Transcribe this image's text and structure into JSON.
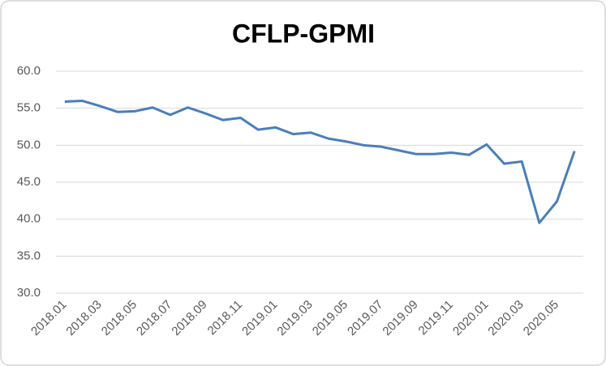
{
  "chart_data": {
    "type": "line",
    "title": "CFLP-GPMI",
    "categories": [
      "2018.01",
      null,
      "2018.03",
      null,
      "2018.05",
      null,
      "2018.07",
      null,
      "2018.09",
      null,
      "2018.11",
      null,
      "2019.01",
      null,
      "2019.03",
      null,
      "2019.05",
      null,
      "2019.07",
      null,
      "2019.09",
      null,
      "2019.11",
      null,
      "2020.01",
      null,
      "2020.03",
      null,
      "2020.05",
      null
    ],
    "series": [
      {
        "color": "#4a7ebb",
        "values": [
          55.9,
          56.0,
          55.3,
          54.5,
          54.6,
          55.1,
          54.1,
          55.1,
          54.3,
          53.4,
          53.7,
          52.1,
          52.4,
          51.5,
          51.7,
          50.9,
          50.5,
          50.0,
          49.8,
          49.3,
          48.8,
          48.8,
          49.0,
          48.7,
          50.1,
          47.5,
          47.8,
          39.5,
          42.4,
          49.2
        ]
      }
    ],
    "ylim": [
      30,
      60
    ],
    "yticks": [
      {
        "value": 30,
        "label": "30.0"
      },
      {
        "value": 35,
        "label": "35.0"
      },
      {
        "value": 40,
        "label": "40.0"
      },
      {
        "value": 45,
        "label": "45.0"
      },
      {
        "value": 50,
        "label": "50.0"
      },
      {
        "value": 55,
        "label": "55.0"
      },
      {
        "value": 60,
        "label": "60.0"
      }
    ],
    "grid": true
  }
}
